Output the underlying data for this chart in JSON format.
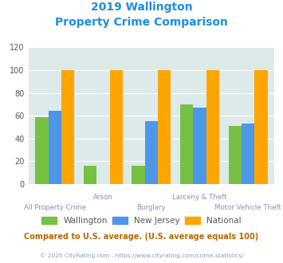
{
  "title_line1": "2019 Wallington",
  "title_line2": "Property Crime Comparison",
  "categories": [
    "All Property Crime",
    "Arson",
    "Burglary",
    "Larceny & Theft",
    "Motor Vehicle Theft"
  ],
  "wallington": [
    59,
    16,
    16,
    70,
    51
  ],
  "new_jersey": [
    64,
    0,
    55,
    67,
    53
  ],
  "national": [
    100,
    100,
    100,
    100,
    100
  ],
  "color_wallington": "#76c043",
  "color_nj": "#4d96e8",
  "color_national": "#ffa500",
  "ylabel_max": 120,
  "yticks": [
    0,
    20,
    40,
    60,
    80,
    100,
    120
  ],
  "bg_color": "#ddeaea",
  "footer_text": "© 2025 CityRating.com - https://www.cityrating.com/crime-statistics/",
  "comparison_text": "Compared to U.S. average. (U.S. average equals 100)",
  "title_color": "#1a8fdd",
  "cat_label_color": "#9988bb",
  "legend_label_color": "#555555",
  "footer_color": "#8899bb",
  "comparison_color": "#bb6600",
  "bar_width": 0.27
}
